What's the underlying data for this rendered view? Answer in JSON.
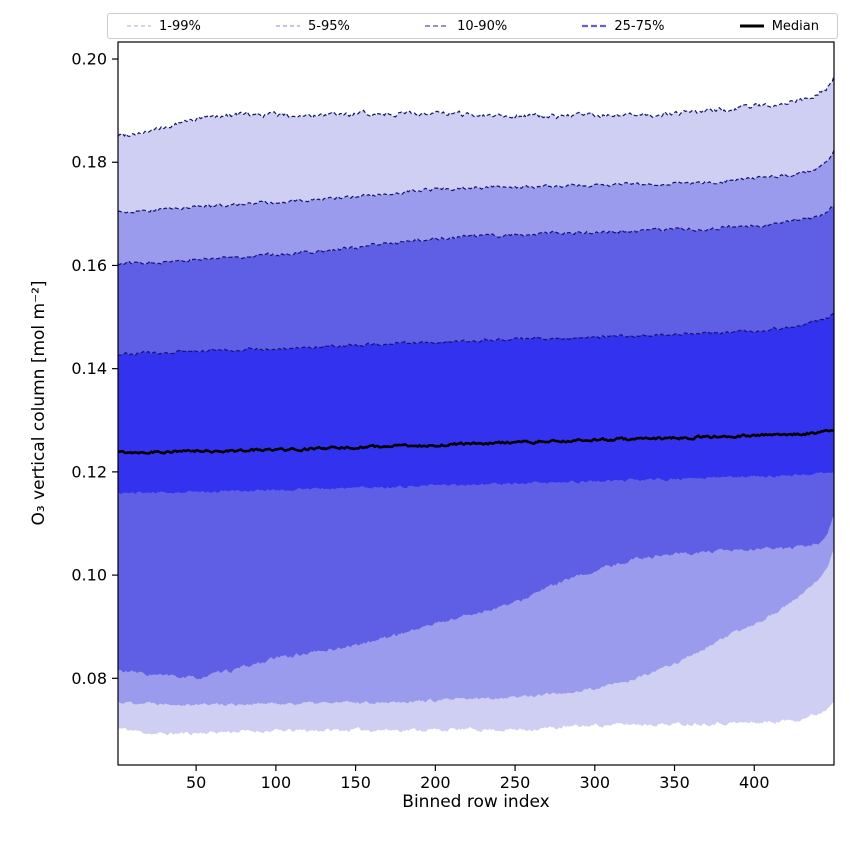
{
  "legend": {
    "items": [
      {
        "label": "1-99%",
        "color": "#c6c6e6",
        "style": "dashed"
      },
      {
        "label": "5-95%",
        "color": "#b0b0ea",
        "style": "dashed"
      },
      {
        "label": "10-90%",
        "color": "#7e7ee3",
        "style": "dashed"
      },
      {
        "label": "25-75%",
        "color": "#6060dd",
        "style": "dashed"
      },
      {
        "label": "Median",
        "color": "#000000",
        "style": "solid"
      }
    ]
  },
  "chart_data": {
    "type": "area",
    "subtype": "percentile-band-fan-chart",
    "title": "",
    "xlabel": "Binned row index",
    "ylabel": "O₃ vertical column [mol m⁻²]",
    "xlim": [
      1,
      450
    ],
    "ylim": [
      0.0632,
      0.2033
    ],
    "x_ticks": [
      50,
      100,
      150,
      200,
      250,
      300,
      350,
      400
    ],
    "y_ticks": [
      0.08,
      0.1,
      0.12,
      0.14,
      0.16,
      0.18,
      0.2
    ],
    "grid": false,
    "legend_position": "top",
    "x": [
      1,
      25,
      50,
      75,
      100,
      125,
      150,
      175,
      200,
      225,
      250,
      275,
      300,
      325,
      350,
      375,
      400,
      415,
      430,
      440,
      446,
      450
    ],
    "percentiles": {
      "p1": [
        0.0703,
        0.0692,
        0.0694,
        0.0697,
        0.0698,
        0.0699,
        0.07,
        0.07,
        0.07,
        0.0701,
        0.07,
        0.0704,
        0.0709,
        0.0711,
        0.0711,
        0.0713,
        0.0714,
        0.0716,
        0.0722,
        0.0731,
        0.0742,
        0.076
      ],
      "p5": [
        0.0754,
        0.0752,
        0.075,
        0.075,
        0.0751,
        0.0752,
        0.0753,
        0.0755,
        0.0757,
        0.076,
        0.0764,
        0.077,
        0.0779,
        0.0798,
        0.0828,
        0.0868,
        0.0906,
        0.093,
        0.0962,
        0.099,
        0.102,
        0.1052
      ],
      "p10": [
        0.0815,
        0.0806,
        0.08,
        0.0817,
        0.0839,
        0.0851,
        0.0864,
        0.0884,
        0.0906,
        0.0926,
        0.0946,
        0.0982,
        0.1008,
        0.1032,
        0.1041,
        0.1045,
        0.1049,
        0.1051,
        0.1054,
        0.1062,
        0.108,
        0.1118
      ],
      "p25": [
        0.1159,
        0.116,
        0.1161,
        0.1163,
        0.1165,
        0.1167,
        0.1169,
        0.1171,
        0.1174,
        0.1176,
        0.1177,
        0.1179,
        0.1182,
        0.1184,
        0.1186,
        0.1189,
        0.1191,
        0.1193,
        0.1194,
        0.1196,
        0.1198,
        0.12
      ],
      "median": [
        0.1238,
        0.1239,
        0.124,
        0.1241,
        0.1243,
        0.1245,
        0.1247,
        0.125,
        0.1252,
        0.1255,
        0.1257,
        0.1259,
        0.1262,
        0.1264,
        0.1266,
        0.1268,
        0.127,
        0.1272,
        0.1274,
        0.1276,
        0.1278,
        0.1281
      ],
      "p75": [
        0.1429,
        0.1431,
        0.1434,
        0.1437,
        0.1439,
        0.1442,
        0.1445,
        0.1449,
        0.1452,
        0.1454,
        0.1457,
        0.1459,
        0.1461,
        0.1464,
        0.1467,
        0.1469,
        0.1474,
        0.1478,
        0.1484,
        0.1491,
        0.1499,
        0.1508
      ],
      "p90": [
        0.1604,
        0.1607,
        0.1611,
        0.1617,
        0.1622,
        0.1627,
        0.1634,
        0.1644,
        0.1652,
        0.1657,
        0.1659,
        0.1662,
        0.1664,
        0.1666,
        0.1669,
        0.1672,
        0.1677,
        0.1681,
        0.1688,
        0.1697,
        0.1706,
        0.1718
      ],
      "p95": [
        0.1703,
        0.1708,
        0.1713,
        0.1719,
        0.1722,
        0.1727,
        0.1733,
        0.174,
        0.1747,
        0.1751,
        0.1752,
        0.1754,
        0.1756,
        0.1757,
        0.1759,
        0.1762,
        0.1768,
        0.1772,
        0.1778,
        0.1788,
        0.18,
        0.182
      ],
      "p99": [
        0.1852,
        0.1862,
        0.1884,
        0.1893,
        0.1892,
        0.1889,
        0.1893,
        0.1895,
        0.1894,
        0.1892,
        0.1891,
        0.1889,
        0.1892,
        0.1889,
        0.1895,
        0.1899,
        0.1908,
        0.1914,
        0.1922,
        0.1931,
        0.1945,
        0.1968
      ]
    },
    "bands": [
      {
        "label": "1-99%",
        "lower": "p1",
        "upper": "p99",
        "fill": "#cfcff4"
      },
      {
        "label": "5-95%",
        "lower": "p5",
        "upper": "p95",
        "fill": "#9b9bee"
      },
      {
        "label": "10-90%",
        "lower": "p10",
        "upper": "p90",
        "fill": "#5f5fe6"
      },
      {
        "label": "25-75%",
        "lower": "p25",
        "upper": "p75",
        "fill": "#3232ef"
      }
    ],
    "median_series": "median",
    "colors": {
      "edge_line": "#14146e",
      "median_line": "#000000",
      "axis": "#000000",
      "tick_label": "#000000"
    }
  }
}
